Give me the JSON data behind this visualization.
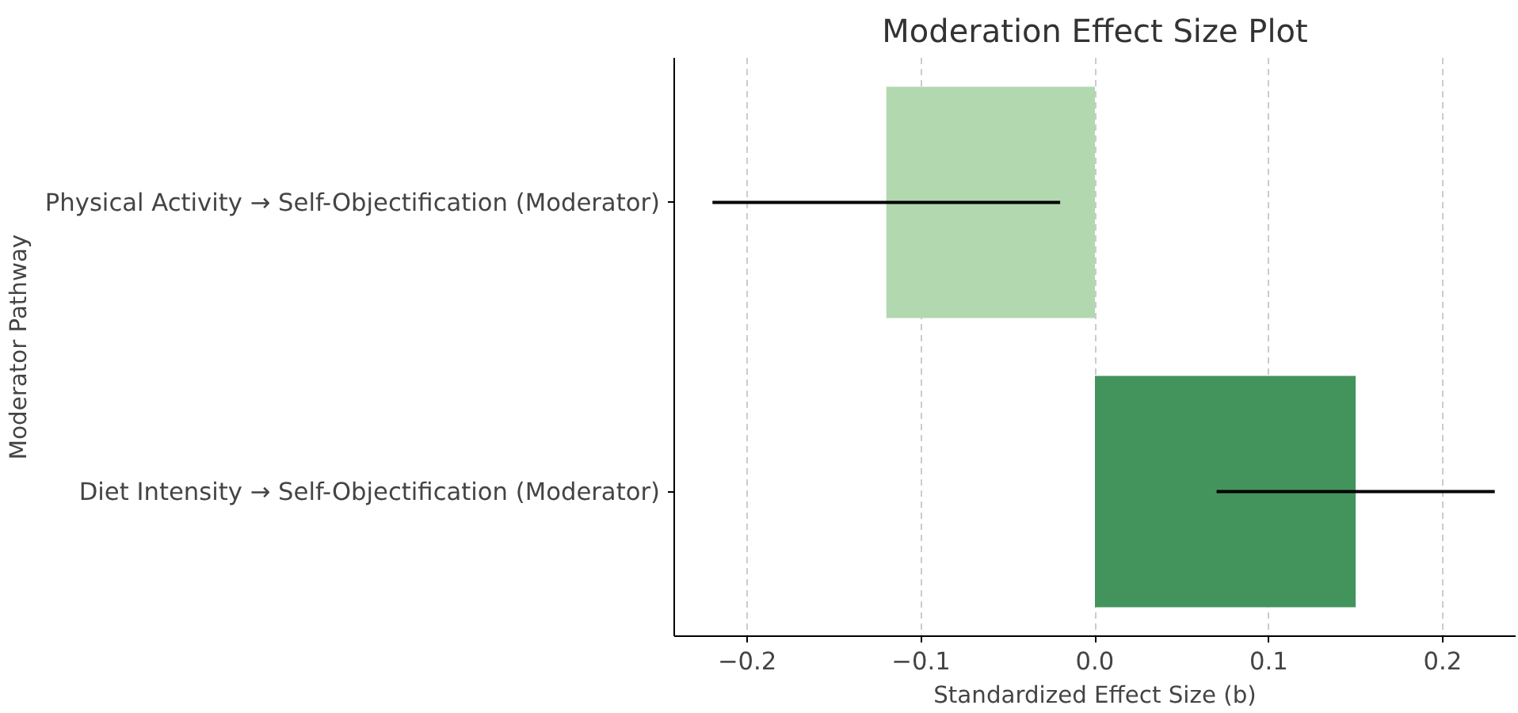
{
  "chart_data": {
    "type": "bar",
    "orientation": "horizontal",
    "title": "Moderation Effect Size Plot",
    "xlabel": "Standardized Effect Size (b)",
    "ylabel": "Moderator Pathway",
    "categories": [
      "Physical Activity → Self-Objectification (Moderator)",
      "Diet Intensity → Self-Objectification (Moderator)"
    ],
    "values": [
      -0.12,
      0.15
    ],
    "colors": [
      "#b2d8b0",
      "#43945c"
    ],
    "errors": [
      0.1,
      0.08
    ],
    "xlim": [
      -0.242,
      0.242
    ],
    "xticks": [
      {
        "value": -0.2,
        "label": "−0.2"
      },
      {
        "value": -0.1,
        "label": "−0.1"
      },
      {
        "value": 0,
        "label": "0.0"
      },
      {
        "value": 0.1,
        "label": "0.1"
      },
      {
        "value": 0.2,
        "label": "0.2"
      }
    ],
    "grid": "x",
    "line_style": "dashed"
  }
}
